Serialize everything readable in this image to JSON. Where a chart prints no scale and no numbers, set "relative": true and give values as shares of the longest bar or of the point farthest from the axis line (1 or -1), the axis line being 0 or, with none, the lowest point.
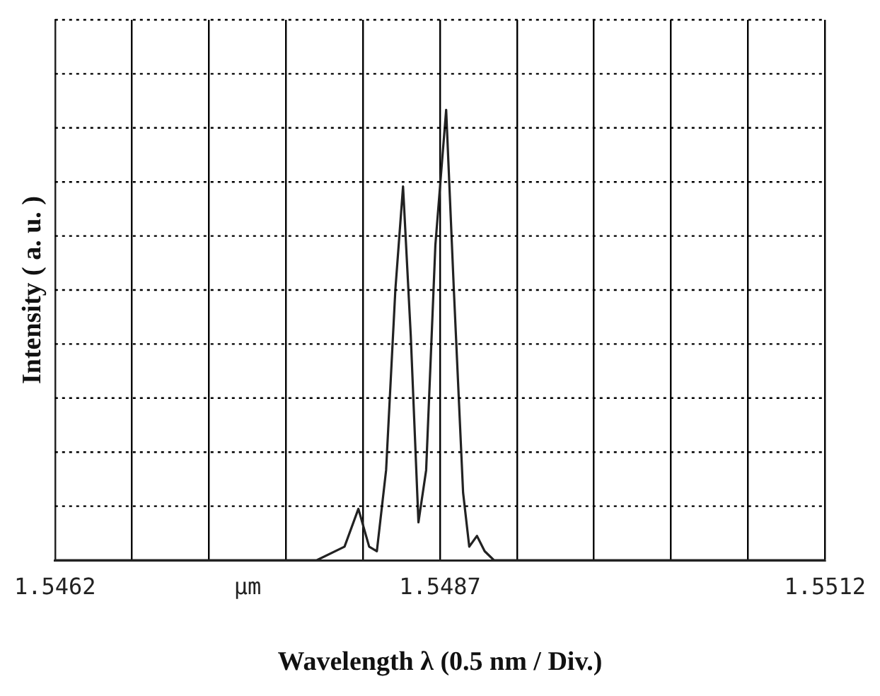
{
  "chart_data": {
    "type": "line",
    "relative": true,
    "xlabel": "Wavelength λ (0.5 nm / Div.)",
    "ylabel": "Intensity ( a. u. )",
    "annotations": [
      "μm"
    ],
    "x": [
      1.5462,
      1.5479,
      1.54808,
      1.54817,
      1.54824,
      1.54829,
      1.54835,
      1.54841,
      1.54846,
      1.54851,
      1.54856,
      1.54861,
      1.54867,
      1.54874,
      1.54879,
      1.54885,
      1.54889,
      1.54894,
      1.54899,
      1.54905,
      1.5512
    ],
    "series": [
      {
        "color": "#222222",
        "values": [
          0,
          0,
          0.03,
          0.114,
          0.03,
          0.02,
          0.2,
          0.6,
          0.83,
          0.5,
          0.084,
          0.2,
          0.7,
          1,
          0.6,
          0.15,
          0.03,
          0.054,
          0.02,
          0,
          0
        ]
      }
    ],
    "xlim": [
      1.5462,
      1.5512
    ],
    "xticks": [
      1.5462,
      {
        "value": 1.5467,
        "label": null
      },
      {
        "value": 1.5472,
        "label": null
      },
      {
        "value": 1.5477,
        "label": null
      },
      {
        "value": 1.5482,
        "label": null
      },
      1.5487,
      {
        "value": 1.5492,
        "label": null
      },
      {
        "value": 1.5497,
        "label": null
      },
      {
        "value": 1.5502,
        "label": null
      },
      {
        "value": 1.5507,
        "label": null
      },
      1.5512
    ],
    "grid": true,
    "legend": false,
    "marker": "none",
    "line_style": "solid"
  }
}
